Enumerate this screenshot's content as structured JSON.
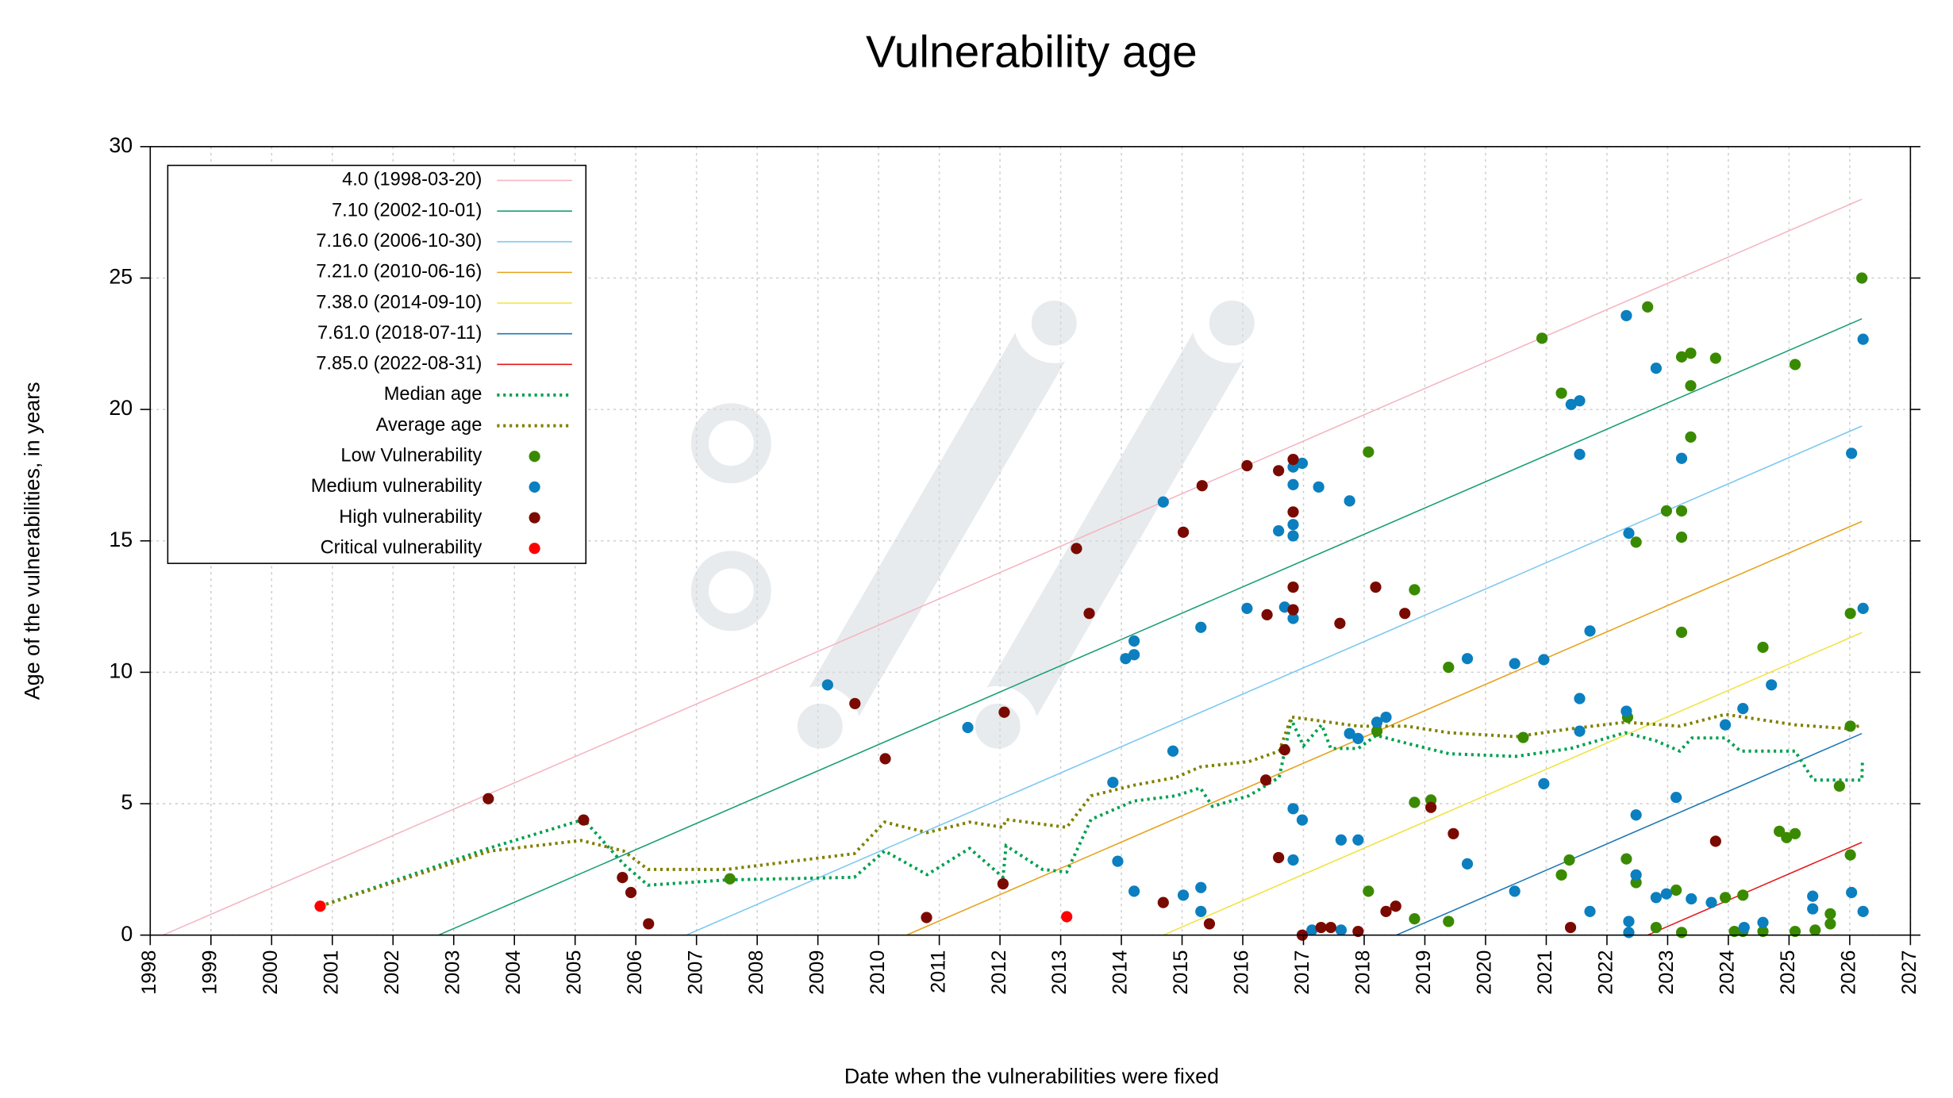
{
  "chart_data": {
    "type": "scatter",
    "title": "Vulnerability age",
    "x_label": "Date when the vulnerabilities were fixed",
    "y_label": "Age of the vulnerabilities, in years",
    "xlim": [
      1998,
      2027
    ],
    "xticks": [
      1998,
      1999,
      2000,
      2001,
      2002,
      2003,
      2004,
      2005,
      2006,
      2007,
      2008,
      2009,
      2010,
      2011,
      2012,
      2013,
      2014,
      2015,
      2016,
      2017,
      2018,
      2019,
      2020,
      2021,
      2022,
      2023,
      2024,
      2025,
      2026,
      2027
    ],
    "ylim": [
      0,
      30
    ],
    "yticks": [
      0,
      5,
      10,
      15,
      20,
      25,
      30
    ],
    "grid": true,
    "legend": "upper left",
    "series": [
      {
        "name": "4.0 (1998-03-20)",
        "type": "line",
        "color": "#f4b6c2",
        "x": [
          1998.21,
          2026.2
        ],
        "values": [
          0,
          28.0
        ]
      },
      {
        "name": "7.10 (2002-10-01)",
        "type": "line",
        "color": "#1a9e77",
        "x": [
          2002.75,
          2026.2
        ],
        "values": [
          0,
          23.45
        ]
      },
      {
        "name": "7.16.0 (2006-10-30)",
        "type": "line",
        "color": "#7ec8f0",
        "x": [
          2006.83,
          2026.2
        ],
        "values": [
          0,
          19.37
        ]
      },
      {
        "name": "7.21.0 (2010-06-16)",
        "type": "line",
        "color": "#e6a21c",
        "x": [
          2010.46,
          2026.2
        ],
        "values": [
          0,
          15.74
        ]
      },
      {
        "name": "7.38.0 (2014-09-10)",
        "type": "line",
        "color": "#f0e442",
        "x": [
          2014.69,
          2026.2
        ],
        "values": [
          0,
          11.51
        ]
      },
      {
        "name": "7.61.0 (2018-07-11)",
        "type": "line",
        "color": "#1f78b4",
        "x": [
          2018.53,
          2026.2
        ],
        "values": [
          0,
          7.67
        ]
      },
      {
        "name": "7.85.0 (2022-08-31)",
        "type": "line",
        "color": "#e31a1c",
        "x": [
          2022.67,
          2026.2
        ],
        "values": [
          0,
          3.53
        ]
      },
      {
        "name": "Median age",
        "type": "dotted-line",
        "color": "#00a050",
        "x": [
          2000.8,
          2003.57,
          2005.14,
          2005.8,
          2006.2,
          2007.5,
          2009.6,
          2010.1,
          2010.8,
          2011.5,
          2012.05,
          2012.1,
          2012.7,
          2013.1,
          2013.5,
          2014.2,
          2014.9,
          2015.3,
          2015.5,
          2016.1,
          2016.6,
          2016.8,
          2017.0,
          2017.3,
          2017.45,
          2017.9,
          2018.2,
          2018.7,
          2019.4,
          2020.5,
          2021.4,
          2022.3,
          2022.8,
          2023.2,
          2023.4,
          2023.95,
          2024.2,
          2025.1,
          2025.4,
          2026.2,
          2026.21
        ],
        "values": [
          1.1,
          3.3,
          4.4,
          2.7,
          1.9,
          2.1,
          2.2,
          3.2,
          2.3,
          3.3,
          2.2,
          3.4,
          2.5,
          2.4,
          4.4,
          5.1,
          5.3,
          5.6,
          4.9,
          5.3,
          6.0,
          8.2,
          7.2,
          8.0,
          7.1,
          7.1,
          7.6,
          7.3,
          6.9,
          6.8,
          7.1,
          7.7,
          7.4,
          7.0,
          7.5,
          7.5,
          7.0,
          7.0,
          5.9,
          5.9,
          6.7
        ]
      },
      {
        "name": "Average age",
        "type": "dotted-line",
        "color": "#808000",
        "x": [
          2000.8,
          2003.6,
          2005.1,
          2005.8,
          2006.2,
          2007.5,
          2009.6,
          2010.1,
          2010.8,
          2011.5,
          2012.05,
          2012.1,
          2013.1,
          2013.5,
          2014.2,
          2014.9,
          2015.3,
          2016.1,
          2016.6,
          2016.8,
          2017.9,
          2018.7,
          2019.4,
          2020.5,
          2021.4,
          2022.3,
          2023.2,
          2023.95,
          2025.1,
          2026.0,
          2026.2
        ],
        "values": [
          1.1,
          3.2,
          3.6,
          3.2,
          2.5,
          2.5,
          3.1,
          4.3,
          3.9,
          4.3,
          4.1,
          4.4,
          4.1,
          5.3,
          5.7,
          6.0,
          6.4,
          6.6,
          7.0,
          8.3,
          7.95,
          7.95,
          7.7,
          7.55,
          7.85,
          8.1,
          7.95,
          8.4,
          8.0,
          7.85,
          8.0
        ]
      },
      {
        "name": "Low Vulnerability",
        "type": "point",
        "color": "#3a8a00",
        "x": [
          2007.55,
          2018.07,
          2018.07,
          2018.21,
          2018.83,
          2018.83,
          2018.83,
          2019.1,
          2019.39,
          2019.39,
          2020.62,
          2020.93,
          2021.25,
          2021.25,
          2021.38,
          2022.32,
          2022.34,
          2022.48,
          2022.48,
          2022.67,
          2022.81,
          2022.98,
          2023.14,
          2023.23,
          2023.23,
          2023.23,
          2023.23,
          2023.23,
          2023.38,
          2023.38,
          2023.38,
          2023.79,
          2023.95,
          2024.1,
          2024.24,
          2024.24,
          2024.57,
          2024.57,
          2024.84,
          2024.96,
          2025.1,
          2025.1,
          2025.1,
          2025.43,
          2025.68,
          2025.68,
          2025.83,
          2026.01,
          2026.01,
          2026.01,
          2026.2
        ],
        "values": [
          2.14,
          18.38,
          1.67,
          7.76,
          13.14,
          5.05,
          0.62,
          5.14,
          10.19,
          0.52,
          7.52,
          22.71,
          20.62,
          2.29,
          2.86,
          2.9,
          8.29,
          14.95,
          2.0,
          23.9,
          0.29,
          16.14,
          1.71,
          22.0,
          16.14,
          15.14,
          11.52,
          0.1,
          22.14,
          18.95,
          20.9,
          21.95,
          1.43,
          0.14,
          1.52,
          0.14,
          10.95,
          0.14,
          3.95,
          3.71,
          3.86,
          21.71,
          0.14,
          0.19,
          0.43,
          0.81,
          5.67,
          12.24,
          7.95,
          3.05,
          25.0
        ]
      },
      {
        "name": "Medium vulnerability",
        "type": "point",
        "color": "#0b7fbf",
        "x": [
          2009.16,
          2011.47,
          2013.86,
          2013.94,
          2014.07,
          2014.21,
          2014.21,
          2014.21,
          2014.69,
          2014.85,
          2015.02,
          2015.31,
          2015.31,
          2015.31,
          2016.07,
          2016.59,
          2016.69,
          2016.83,
          2016.83,
          2016.83,
          2016.83,
          2016.83,
          2016.83,
          2016.83,
          2016.98,
          2016.98,
          2017.14,
          2017.25,
          2017.62,
          2017.62,
          2017.76,
          2017.76,
          2017.9,
          2017.9,
          2018.21,
          2018.36,
          2019.7,
          2019.7,
          2020.48,
          2020.48,
          2020.96,
          2020.96,
          2021.41,
          2021.55,
          2021.55,
          2021.55,
          2021.55,
          2021.72,
          2021.72,
          2022.32,
          2022.32,
          2022.36,
          2022.36,
          2022.36,
          2022.48,
          2022.48,
          2022.81,
          2022.81,
          2022.98,
          2023.23,
          2023.14,
          2023.39,
          2023.72,
          2023.95,
          2024.24,
          2024.26,
          2024.57,
          2024.71,
          2025.39,
          2025.39,
          2026.03,
          2026.03,
          2026.22,
          2026.22,
          2026.22
        ],
        "values": [
          9.52,
          7.9,
          5.81,
          2.81,
          10.52,
          11.19,
          10.67,
          1.67,
          16.48,
          7.0,
          1.52,
          11.71,
          1.81,
          0.9,
          12.43,
          15.38,
          12.48,
          17.81,
          17.14,
          15.62,
          15.19,
          12.05,
          4.81,
          2.86,
          17.95,
          4.38,
          0.19,
          17.05,
          3.62,
          0.19,
          16.52,
          7.67,
          7.48,
          3.62,
          8.1,
          8.29,
          10.52,
          2.71,
          10.33,
          1.67,
          10.48,
          5.76,
          20.19,
          20.33,
          18.29,
          9.0,
          7.76,
          11.57,
          0.9,
          23.57,
          8.52,
          15.29,
          0.52,
          0.1,
          4.57,
          2.29,
          21.57,
          1.43,
          1.57,
          18.14,
          5.24,
          1.38,
          1.24,
          8.0,
          8.62,
          0.29,
          0.48,
          9.52,
          1.48,
          1.0,
          18.33,
          1.62,
          22.67,
          12.43,
          0.9
        ]
      },
      {
        "name": "High vulnerability",
        "type": "point",
        "color": "#7a0a00",
        "x": [
          2003.57,
          2005.14,
          2005.78,
          2005.92,
          2006.21,
          2009.61,
          2010.11,
          2010.79,
          2012.07,
          2012.05,
          2013.26,
          2013.47,
          2014.69,
          2015.02,
          2015.33,
          2015.45,
          2016.07,
          2016.4,
          2016.38,
          2016.59,
          2016.59,
          2016.69,
          2016.83,
          2016.83,
          2016.83,
          2016.83,
          2016.98,
          2017.29,
          2017.45,
          2017.6,
          2017.9,
          2018.19,
          2018.36,
          2018.52,
          2018.67,
          2019.1,
          2019.47,
          2021.4,
          2023.79
        ],
        "values": [
          5.19,
          4.38,
          2.19,
          1.62,
          0.43,
          8.81,
          6.71,
          0.67,
          8.48,
          1.95,
          14.71,
          12.24,
          1.24,
          15.33,
          17.1,
          0.43,
          17.86,
          12.19,
          5.9,
          17.67,
          2.95,
          7.05,
          18.1,
          16.1,
          13.24,
          12.38,
          0.0,
          0.29,
          0.29,
          11.86,
          0.14,
          13.24,
          0.9,
          1.1,
          12.24,
          4.86,
          3.86,
          0.29,
          3.57
        ]
      },
      {
        "name": "Critical vulnerability",
        "type": "point",
        "color": "#ff0000",
        "x": [
          2000.8,
          2013.1
        ],
        "values": [
          1.1,
          0.7
        ]
      }
    ]
  }
}
